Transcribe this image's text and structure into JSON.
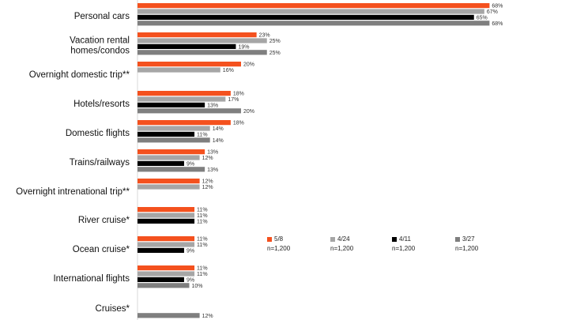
{
  "chart_data": {
    "type": "bar",
    "orientation": "horizontal",
    "categories": [
      "Personal cars",
      "Vacation rental homes/condos",
      "Overnight domestic trip**",
      "Hotels/resorts",
      "Domestic flights",
      "Trains/railways",
      "Overnight intrenational trip**",
      "River cruise*",
      "Ocean cruise*",
      "International flights",
      "Cruises*"
    ],
    "category_lines": [
      [
        "Personal cars"
      ],
      [
        "Vacation rental",
        "homes/condos"
      ],
      [
        "Overnight domestic trip**"
      ],
      [
        "Hotels/resorts"
      ],
      [
        "Domestic flights"
      ],
      [
        "Trains/railways"
      ],
      [
        "Overnight intrenational trip**"
      ],
      [
        "River cruise*"
      ],
      [
        "Ocean cruise*"
      ],
      [
        "International flights"
      ],
      [
        "Cruises*"
      ]
    ],
    "series": [
      {
        "name": "5/8",
        "n": "n=1,200",
        "color": "#f4511e",
        "values": [
          68,
          23,
          20,
          18,
          18,
          13,
          12,
          11,
          11,
          11,
          null
        ]
      },
      {
        "name": "4/24",
        "n": "n=1,200",
        "color": "#a6a6a6",
        "values": [
          67,
          25,
          16,
          17,
          14,
          12,
          12,
          11,
          11,
          11,
          null
        ]
      },
      {
        "name": "4/11",
        "n": "n=1,200",
        "color": "#000000",
        "values": [
          65,
          19,
          null,
          13,
          11,
          9,
          null,
          11,
          9,
          9,
          null
        ]
      },
      {
        "name": "3/27",
        "n": "n=1,200",
        "color": "#7f7f7f",
        "values": [
          68,
          25,
          null,
          20,
          14,
          13,
          null,
          null,
          null,
          10,
          12
        ]
      }
    ],
    "value_suffix": "%",
    "xlim": [
      0,
      70
    ],
    "grid": false,
    "legend_position": "right"
  }
}
